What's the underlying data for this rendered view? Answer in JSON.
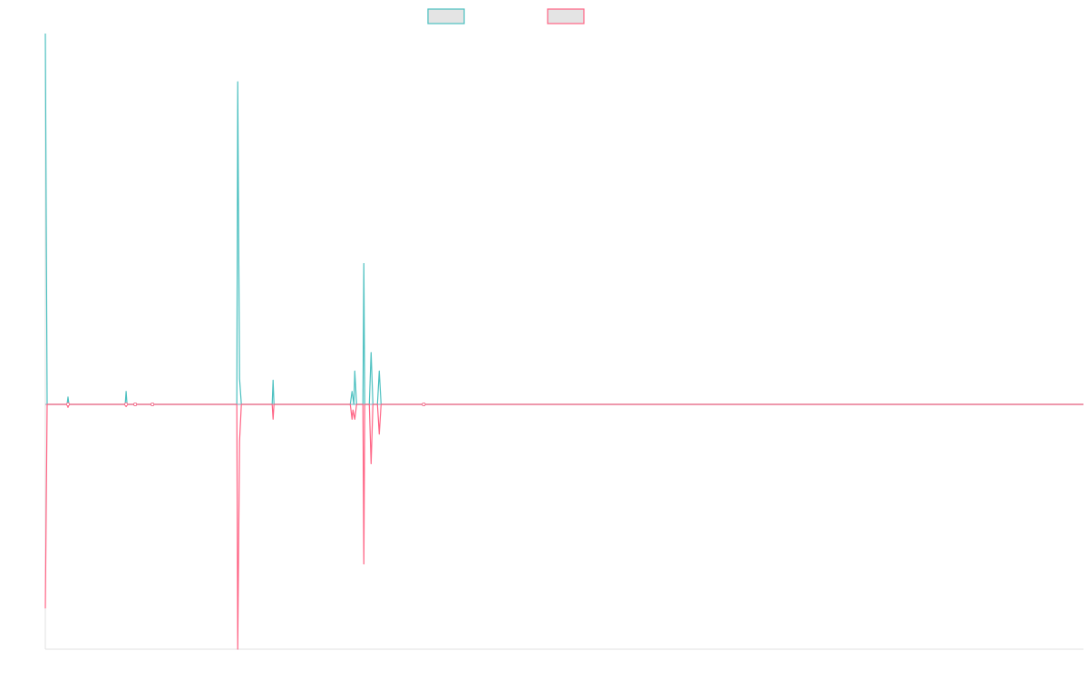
{
  "chart_data": {
    "type": "line",
    "title": "",
    "xlabel": "",
    "ylabel": "",
    "grid": false,
    "legend_position": "top-center",
    "x": [
      0,
      1,
      2,
      3,
      4,
      5,
      6,
      7,
      8,
      9,
      10,
      11,
      12,
      13,
      14,
      15,
      16,
      17,
      18,
      19,
      20,
      21,
      22,
      23,
      24,
      25,
      26,
      27,
      28,
      29,
      30,
      31,
      32,
      33,
      34,
      35,
      36,
      37,
      38,
      39,
      40,
      41,
      42,
      43,
      44,
      45,
      46,
      47,
      48,
      49,
      50,
      51,
      52,
      53,
      54,
      55,
      56,
      57,
      58,
      59,
      60,
      61,
      62,
      63,
      64,
      65,
      66,
      67,
      68,
      69,
      70,
      71,
      72,
      73,
      74,
      75,
      76,
      77,
      78,
      79,
      80,
      81,
      82,
      83,
      84,
      85,
      86,
      87,
      88,
      89,
      90,
      91,
      92,
      93,
      94,
      95,
      96,
      97,
      98,
      99,
      100,
      101,
      102,
      103,
      104,
      105,
      106,
      107,
      108,
      109,
      110,
      111,
      112,
      113,
      114,
      115,
      116,
      117,
      118,
      119,
      120,
      121,
      122,
      123,
      124,
      125,
      126,
      127,
      128,
      129,
      130,
      131,
      132,
      133,
      134,
      135,
      136,
      137,
      138,
      139,
      140,
      141,
      142,
      143,
      144,
      145,
      146,
      147,
      148,
      149,
      150,
      151,
      152,
      153,
      154,
      155,
      156,
      157,
      158,
      159,
      160,
      161,
      162,
      163,
      164,
      165,
      166,
      167,
      168,
      169,
      170,
      171,
      172,
      173,
      174,
      175,
      176,
      177,
      178,
      179,
      180,
      181,
      182,
      183,
      184,
      185,
      186,
      187,
      188,
      189,
      190,
      191,
      192,
      193,
      194,
      195,
      196,
      197,
      198,
      199,
      200,
      201,
      202,
      203,
      204,
      205,
      206,
      207,
      208,
      209,
      210,
      211,
      212,
      213,
      214,
      215,
      216,
      217,
      218,
      219,
      220,
      221,
      222,
      223,
      224,
      225,
      226,
      227,
      228,
      229,
      230,
      231,
      232,
      233,
      234,
      235,
      236,
      237,
      238,
      239,
      240,
      241,
      242,
      243,
      244,
      245,
      246,
      247,
      248,
      249,
      250,
      251,
      252,
      253,
      254,
      255,
      256,
      257,
      258,
      259,
      260,
      261,
      262,
      263,
      264,
      265,
      266,
      267,
      268,
      269,
      270,
      271,
      272,
      273,
      274,
      275,
      276,
      277,
      278,
      279,
      280,
      281,
      282,
      283,
      284,
      285,
      286,
      287,
      288,
      289,
      290,
      291,
      292,
      293,
      294,
      295,
      296,
      297,
      298,
      299,
      300,
      301,
      302,
      303,
      304,
      305,
      306,
      307,
      308,
      309,
      310,
      311,
      312,
      313,
      314,
      315,
      316,
      317,
      318,
      319,
      320,
      321,
      322,
      323,
      324,
      325,
      326,
      327,
      328,
      329,
      330,
      331,
      332,
      333,
      334,
      335,
      336,
      337,
      338,
      339,
      340,
      341,
      342,
      343,
      344,
      345,
      346,
      347,
      348,
      349,
      350,
      351,
      352,
      353,
      354,
      355,
      356,
      357,
      358,
      359,
      360,
      361,
      362,
      363,
      364,
      365,
      366,
      367,
      368,
      369,
      370,
      371,
      372,
      373,
      374,
      375,
      376,
      377,
      378,
      379,
      380,
      381,
      382,
      383,
      384,
      385,
      386,
      387,
      388,
      389,
      390,
      391,
      392,
      393,
      394,
      395,
      396,
      397,
      398,
      399,
      400,
      401,
      402,
      403,
      404,
      405,
      406,
      407,
      408,
      409,
      410,
      411,
      412,
      413,
      414,
      415,
      416,
      417,
      418,
      419,
      420,
      421,
      422,
      423,
      424,
      425,
      426,
      427,
      428,
      429,
      430,
      431,
      432,
      433,
      434,
      435,
      436,
      437,
      438,
      439,
      440,
      441,
      442,
      443,
      444,
      445,
      446,
      447,
      448,
      449,
      450,
      451,
      452,
      453,
      454,
      455,
      456,
      457,
      458,
      459,
      460,
      461,
      462,
      463,
      464,
      465,
      466,
      467,
      468,
      469,
      470,
      471,
      472,
      473,
      474,
      475,
      476,
      477,
      478,
      479,
      480,
      481,
      482,
      483,
      484,
      485,
      486,
      487,
      488,
      489,
      490,
      491,
      492,
      493,
      494,
      495,
      496,
      497,
      498,
      499,
      500,
      501,
      502,
      503,
      504,
      505,
      506,
      507,
      508,
      509,
      510,
      511,
      512,
      513,
      514,
      515,
      516,
      517,
      518,
      519,
      520,
      521,
      522,
      523,
      524,
      525,
      526,
      527,
      528,
      529,
      530,
      531,
      532,
      533,
      534,
      535,
      536,
      537,
      538,
      539,
      540,
      541,
      542,
      543,
      544,
      545,
      546,
      547,
      548,
      549,
      550,
      551,
      552,
      553,
      554,
      555,
      556,
      557,
      558,
      559,
      560,
      561,
      562,
      563,
      564,
      565,
      566,
      567,
      568,
      569,
      570,
      571,
      572,
      573,
      574,
      575,
      576,
      577,
      578,
      579,
      580,
      581,
      582,
      583,
      584,
      585,
      586,
      587,
      588,
      589,
      590,
      591,
      592,
      593,
      594,
      595,
      596,
      597,
      598,
      599,
      600,
      601,
      602,
      603,
      604,
      605,
      606,
      607,
      608,
      609,
      610,
      611,
      612,
      613,
      614,
      615,
      616,
      617,
      618,
      619,
      620,
      621,
      622,
      623,
      624,
      625,
      626,
      627,
      628,
      629,
      630,
      631,
      632,
      633,
      634,
      635,
      636,
      637,
      638,
      639,
      640,
      641,
      642,
      643,
      644,
      645,
      646,
      647,
      648,
      649,
      650,
      651,
      652,
      653,
      654,
      655,
      656,
      657,
      658,
      659,
      660,
      661,
      662,
      663,
      664,
      665,
      666,
      667,
      668,
      669,
      670,
      671,
      672,
      673,
      674,
      675,
      676,
      677,
      678,
      679,
      680,
      681,
      682,
      683,
      684,
      685,
      686,
      687,
      688,
      689,
      690,
      691,
      692,
      693,
      694,
      695,
      696,
      697,
      698,
      699,
      700,
      701,
      702,
      703,
      704,
      705,
      706,
      707,
      708,
      709,
      710,
      711,
      712,
      713,
      714,
      715,
      716,
      717,
      718,
      719,
      720,
      721,
      722,
      723,
      724,
      725,
      726,
      727,
      728,
      729,
      730,
      731,
      732,
      733,
      734,
      735,
      736,
      737,
      738,
      739,
      740,
      741,
      742,
      743,
      744,
      745,
      746,
      747,
      748,
      749,
      750,
      751,
      752,
      753,
      754,
      755,
      756,
      757,
      758,
      759,
      760,
      761,
      762,
      763,
      764,
      765,
      766,
      767,
      768,
      769,
      770,
      771,
      772,
      773,
      774,
      775,
      776,
      777,
      778,
      779,
      780,
      781,
      782,
      783,
      784,
      785,
      786,
      787,
      788,
      789,
      790,
      791,
      792,
      793,
      794,
      795,
      796,
      797,
      798,
      799,
      800,
      801,
      802,
      803,
      804,
      805,
      806,
      807,
      808,
      809,
      810,
      811,
      812,
      813,
      814,
      815,
      816,
      817,
      818,
      819,
      820,
      821,
      822,
      823,
      824,
      825,
      826,
      827,
      828,
      829,
      830,
      831,
      832,
      833,
      834,
      835,
      836,
      837,
      838,
      839,
      840,
      841,
      842,
      843,
      844,
      845,
      846,
      847,
      848,
      849,
      850,
      851,
      852,
      853,
      854,
      855,
      856,
      857,
      858,
      859,
      860,
      861,
      862,
      863,
      864,
      865,
      866,
      867,
      868,
      869,
      870,
      871,
      872,
      873,
      874,
      875,
      876,
      877,
      878,
      879,
      880,
      881,
      882,
      883,
      884,
      885,
      886,
      887,
      888,
      889,
      890,
      891,
      892,
      893,
      894,
      895,
      896,
      897,
      898,
      899,
      900,
      901,
      902,
      903,
      904,
      905,
      906,
      907,
      908,
      909,
      910,
      911,
      912,
      913,
      914,
      915,
      916,
      917,
      918,
      919,
      920,
      921,
      922,
      923,
      924,
      925,
      926,
      927,
      928,
      929,
      930,
      931,
      932,
      933,
      934,
      935,
      936,
      937,
      938,
      939,
      940,
      941,
      942,
      943,
      944,
      945,
      946,
      947,
      948,
      949,
      950,
      951,
      952,
      953,
      954,
      955,
      956,
      957,
      958,
      959,
      960,
      961,
      962,
      963,
      964,
      965,
      966,
      967,
      968,
      969,
      970,
      971,
      972,
      973,
      974,
      975,
      976,
      977,
      978,
      979,
      980,
      981,
      982,
      983,
      984,
      985,
      986,
      987,
      988,
      989,
      990,
      991,
      992,
      993,
      994,
      995,
      996,
      997,
      998,
      999,
      1000,
      1001,
      1002,
      1003,
      1004,
      1005,
      1006,
      1007,
      1008,
      1009,
      1010,
      1011,
      1012,
      1013,
      1014,
      1015,
      1016,
      1017,
      1018,
      1019,
      1020,
      1021,
      1022,
      1023,
      1024,
      1025,
      1026,
      1027,
      1028,
      1029,
      1030,
      1031,
      1032,
      1033,
      1034,
      1035,
      1036,
      1037,
      1038,
      1039,
      1040,
      1041,
      1042,
      1043,
      1044,
      1045,
      1046,
      1047,
      1048,
      1049,
      1050,
      1051,
      1052,
      1053,
      1054,
      1055,
      1056,
      1057,
      1058,
      1059,
      1060,
      1061,
      1062,
      1063,
      1064,
      1065,
      1066,
      1067,
      1068,
      1069,
      1070,
      1071,
      1072,
      1073,
      1074,
      1075,
      1076,
      1077,
      1078,
      1079,
      1080,
      1081,
      1082,
      1083,
      1084,
      1085,
      1086,
      1087,
      1088,
      1089,
      1090,
      1091,
      1092,
      1093,
      1094,
      1095,
      1096,
      1097,
      1098,
      1099,
      1100,
      1101,
      1102,
      1103,
      1104,
      1105,
      1106,
      1107,
      1108,
      1109,
      1110,
      1111,
      1112,
      1113,
      1114,
      1115,
      1116,
      1117,
      1118,
      1119,
      1120,
      1121,
      1122,
      1123,
      1124,
      1125,
      1126,
      1127,
      1128,
      1129,
      1130,
      1131,
      1132,
      1133,
      1134,
      1135,
      1136,
      1137,
      1138,
      1139,
      1140,
      1141,
      1142,
      1143,
      1144
    ],
    "series": [
      {
        "color": "#4bc0c0",
        "legend_fill": "#e4e4e4",
        "points": [
          [
            0,
            100
          ],
          [
            2,
            0
          ],
          [
            24,
            0
          ],
          [
            25,
            2
          ],
          [
            26,
            0
          ],
          [
            88,
            0
          ],
          [
            89,
            3.5
          ],
          [
            90,
            0
          ],
          [
            98,
            0
          ],
          [
            99,
            0.3
          ],
          [
            100,
            0
          ],
          [
            117,
            0
          ],
          [
            118,
            0.3
          ],
          [
            119,
            0
          ],
          [
            211,
            0
          ],
          [
            212,
            87
          ],
          [
            214,
            7
          ],
          [
            216,
            0
          ],
          [
            250,
            0
          ],
          [
            251,
            6.5
          ],
          [
            252,
            0
          ],
          [
            336,
            0
          ],
          [
            338,
            3.5
          ],
          [
            340,
            0
          ],
          [
            341,
            9
          ],
          [
            343,
            0
          ],
          [
            350,
            0
          ],
          [
            351,
            38
          ],
          [
            352,
            0
          ],
          [
            357,
            0
          ],
          [
            359,
            14
          ],
          [
            361,
            0
          ],
          [
            366,
            0
          ],
          [
            368,
            9
          ],
          [
            370,
            0
          ],
          [
            416,
            0
          ],
          [
            417,
            0.2
          ],
          [
            418,
            0
          ],
          [
            1144,
            0
          ]
        ]
      },
      {
        "color": "#ff6384",
        "legend_fill": "#e4e4e4",
        "points": [
          [
            0,
            -55
          ],
          [
            2,
            0
          ],
          [
            24,
            0
          ],
          [
            25,
            -0.8
          ],
          [
            26,
            0
          ],
          [
            88,
            0
          ],
          [
            89,
            -0.6
          ],
          [
            90,
            0
          ],
          [
            98,
            0
          ],
          [
            99,
            -0.2
          ],
          [
            100,
            0
          ],
          [
            117,
            0
          ],
          [
            118,
            -0.2
          ],
          [
            119,
            0
          ],
          [
            211,
            0
          ],
          [
            212,
            -66
          ],
          [
            214,
            -10
          ],
          [
            216,
            0
          ],
          [
            250,
            0
          ],
          [
            251,
            -4
          ],
          [
            252,
            0
          ],
          [
            336,
            0
          ],
          [
            338,
            -4
          ],
          [
            339,
            -1.5
          ],
          [
            341,
            -4
          ],
          [
            343,
            0
          ],
          [
            350,
            0
          ],
          [
            351,
            -43
          ],
          [
            352,
            0
          ],
          [
            357,
            0
          ],
          [
            359,
            -16
          ],
          [
            361,
            0
          ],
          [
            366,
            0
          ],
          [
            368,
            -8
          ],
          [
            370,
            0
          ],
          [
            416,
            0
          ],
          [
            417,
            -0.2
          ],
          [
            418,
            0
          ],
          [
            1144,
            0
          ]
        ]
      }
    ],
    "xlim": [
      0,
      1144
    ],
    "ylim": [
      -66,
      100
    ],
    "zero_line_color": "#8aa3b8",
    "axis_color": "#e0e0e0"
  }
}
